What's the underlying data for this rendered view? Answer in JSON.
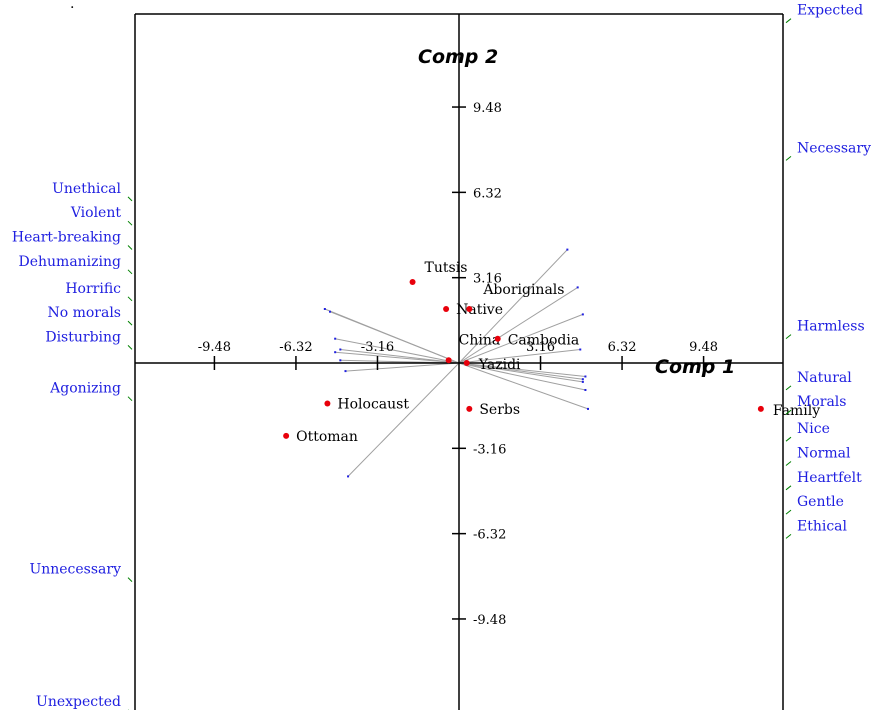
{
  "chart_data": {
    "type": "scatter",
    "title": "",
    "xlabel": "Comp 1",
    "ylabel": "Comp 2",
    "xlim": [
      -15.2,
      11.8
    ],
    "ylim": [
      -13.0,
      13.2
    ],
    "x_ticks": [
      -9.48,
      -6.32,
      -3.16,
      3.16,
      6.32,
      9.48
    ],
    "y_ticks": [
      9.48,
      6.32,
      3.16,
      -3.16,
      -6.32,
      -9.48
    ],
    "tick_labels": {
      "x": [
        "-9.48",
        "-6.32",
        "-3.16",
        "3.16",
        "6.32",
        "9.48"
      ],
      "y": [
        "9.48",
        "6.32",
        "3.16",
        "-3.16",
        "-6.32",
        "-9.48"
      ]
    },
    "points": [
      {
        "label": "Tutsis",
        "x": -1.8,
        "y": 3.0
      },
      {
        "label": "Native",
        "x": -0.5,
        "y": 2.0
      },
      {
        "label": "Aboriginals",
        "x": 0.4,
        "y": 2.0
      },
      {
        "label": "China",
        "x": -0.4,
        "y": 0.1
      },
      {
        "label": "Cambodia",
        "x": 1.5,
        "y": 0.9
      },
      {
        "label": "Yazidi",
        "x": 0.3,
        "y": 0.0
      },
      {
        "label": "Serbs",
        "x": 0.4,
        "y": -1.7
      },
      {
        "label": "Holocaust",
        "x": -5.1,
        "y": -1.5
      },
      {
        "label": "Ottoman",
        "x": -6.7,
        "y": -2.7
      },
      {
        "label": "Family",
        "x": 11.7,
        "y": -1.7
      }
    ],
    "loadings": [
      [
        4.2,
        4.2
      ],
      [
        4.6,
        2.8
      ],
      [
        4.8,
        1.8
      ],
      [
        4.7,
        0.5
      ],
      [
        4.9,
        -0.5
      ],
      [
        4.8,
        -0.7
      ],
      [
        4.9,
        -1.0
      ],
      [
        4.8,
        -0.6
      ],
      [
        5.0,
        -1.7
      ],
      [
        -5.2,
        2.0
      ],
      [
        -5.0,
        1.9
      ],
      [
        -4.8,
        0.9
      ],
      [
        -4.6,
        0.5
      ],
      [
        -4.8,
        0.4
      ],
      [
        -4.6,
        0.1
      ],
      [
        -4.4,
        -0.3
      ],
      [
        -4.3,
        -4.2
      ]
    ],
    "attributes_left": [
      {
        "label": "Unethical",
        "y": 6.3
      },
      {
        "label": "Violent",
        "y": 5.4
      },
      {
        "label": "Heart-breaking",
        "y": 4.5
      },
      {
        "label": "Dehumanizing",
        "y": 3.6
      },
      {
        "label": "Horrific",
        "y": 2.6
      },
      {
        "label": "No morals",
        "y": 1.7
      },
      {
        "label": "Disturbing",
        "y": 0.8
      },
      {
        "label": "Agonizing",
        "y": -1.1
      },
      {
        "label": "Unnecessary",
        "y": -7.8
      },
      {
        "label": "Unexpected",
        "y": -12.7
      }
    ],
    "attributes_right": [
      {
        "label": "Expected",
        "y": 12.9
      },
      {
        "label": "Necessary",
        "y": 7.8
      },
      {
        "label": "Harmless",
        "y": 1.2
      },
      {
        "label": "Natural",
        "y": -0.7
      },
      {
        "label": "Morals",
        "y": -1.6
      },
      {
        "label": "Nice",
        "y": -2.6
      },
      {
        "label": "Normal",
        "y": -3.5
      },
      {
        "label": "Heartfelt",
        "y": -4.4
      },
      {
        "label": "Gentle",
        "y": -5.3
      },
      {
        "label": "Ethical",
        "y": -6.2
      }
    ],
    "grid": false,
    "colors": {
      "points": "#e8000b",
      "attributes": "#2020e0",
      "ticks_markers": "#008000",
      "axes": "#000000",
      "loadings": "#a0a0a0"
    },
    "stray_mark": "."
  }
}
